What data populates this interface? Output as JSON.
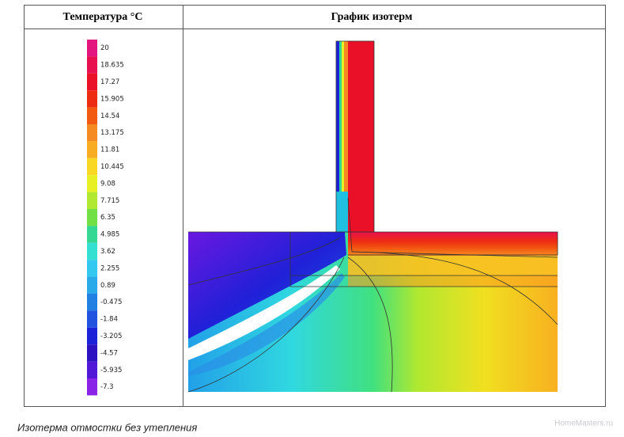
{
  "table": {
    "header": [
      "Температура °C",
      "График изотерм"
    ]
  },
  "legend": {
    "items": [
      {
        "label": "20",
        "color": "#e3167f"
      },
      {
        "label": "18.635",
        "color": "#e8104e"
      },
      {
        "label": "17.27",
        "color": "#ea1028"
      },
      {
        "label": "15.905",
        "color": "#ee2c12"
      },
      {
        "label": "14.54",
        "color": "#f25a12"
      },
      {
        "label": "13.175",
        "color": "#f58a22"
      },
      {
        "label": "11.81",
        "color": "#f8ac22"
      },
      {
        "label": "10.445",
        "color": "#f8d822"
      },
      {
        "label": "9.08",
        "color": "#e6f022"
      },
      {
        "label": "7.715",
        "color": "#b0e832"
      },
      {
        "label": "6.35",
        "color": "#70e044"
      },
      {
        "label": "4.985",
        "color": "#34d892"
      },
      {
        "label": "3.62",
        "color": "#34e0d2"
      },
      {
        "label": "2.255",
        "color": "#32c8f0"
      },
      {
        "label": "0.89",
        "color": "#2aaae8"
      },
      {
        "label": "-0.475",
        "color": "#2280e2"
      },
      {
        "label": "-1.84",
        "color": "#2252e0"
      },
      {
        "label": "-3.205",
        "color": "#1c22d8"
      },
      {
        "label": "-4.57",
        "color": "#2c12c0"
      },
      {
        "label": "-5.935",
        "color": "#5218d8"
      },
      {
        "label": "-7.3",
        "color": "#8a22e8"
      }
    ]
  },
  "caption": "Изотерма отмостки без утепления",
  "watermark": "HomeMasters.ru"
}
